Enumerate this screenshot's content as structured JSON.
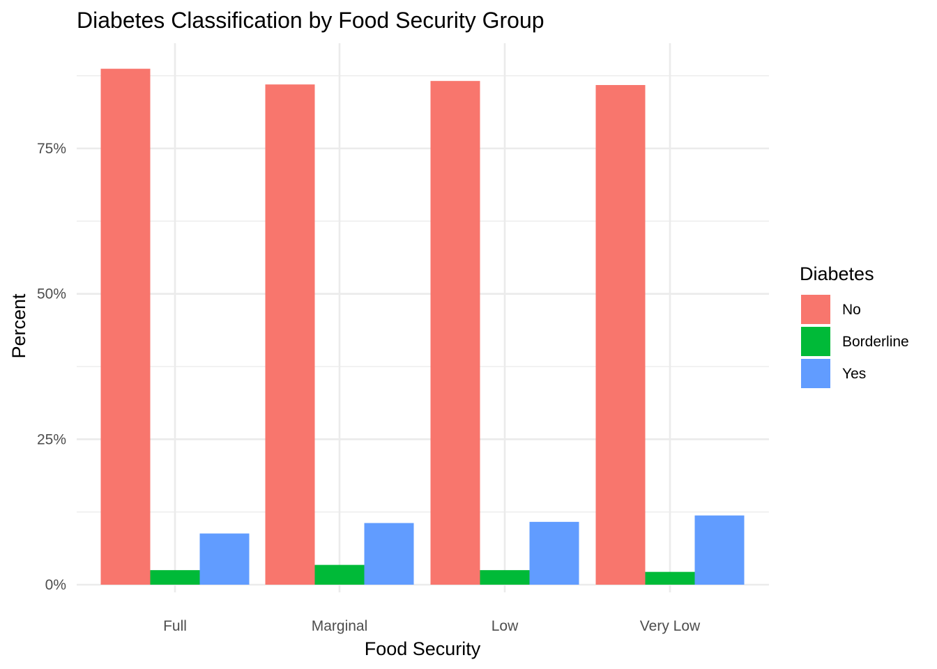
{
  "chart_data": {
    "type": "bar",
    "title": "Diabetes Classification by Food Security Group",
    "xlabel": "Food Security",
    "ylabel": "Percent",
    "categories": [
      "Full",
      "Marginal",
      "Low",
      "Very Low"
    ],
    "series": [
      {
        "name": "No",
        "color": "#F8766D",
        "values": [
          88.7,
          86.0,
          86.6,
          85.9
        ]
      },
      {
        "name": "Borderline",
        "color": "#00BA38",
        "values": [
          2.5,
          3.4,
          2.5,
          2.2
        ]
      },
      {
        "name": "Yes",
        "color": "#619CFF",
        "values": [
          8.8,
          10.6,
          10.8,
          11.9
        ]
      }
    ],
    "yticks": [
      0,
      25,
      50,
      75
    ],
    "ytick_labels": [
      "0%",
      "25%",
      "50%",
      "75%"
    ],
    "ylim": [
      0,
      93
    ],
    "grid": true,
    "legend": {
      "title": "Diabetes",
      "position": "right"
    }
  }
}
